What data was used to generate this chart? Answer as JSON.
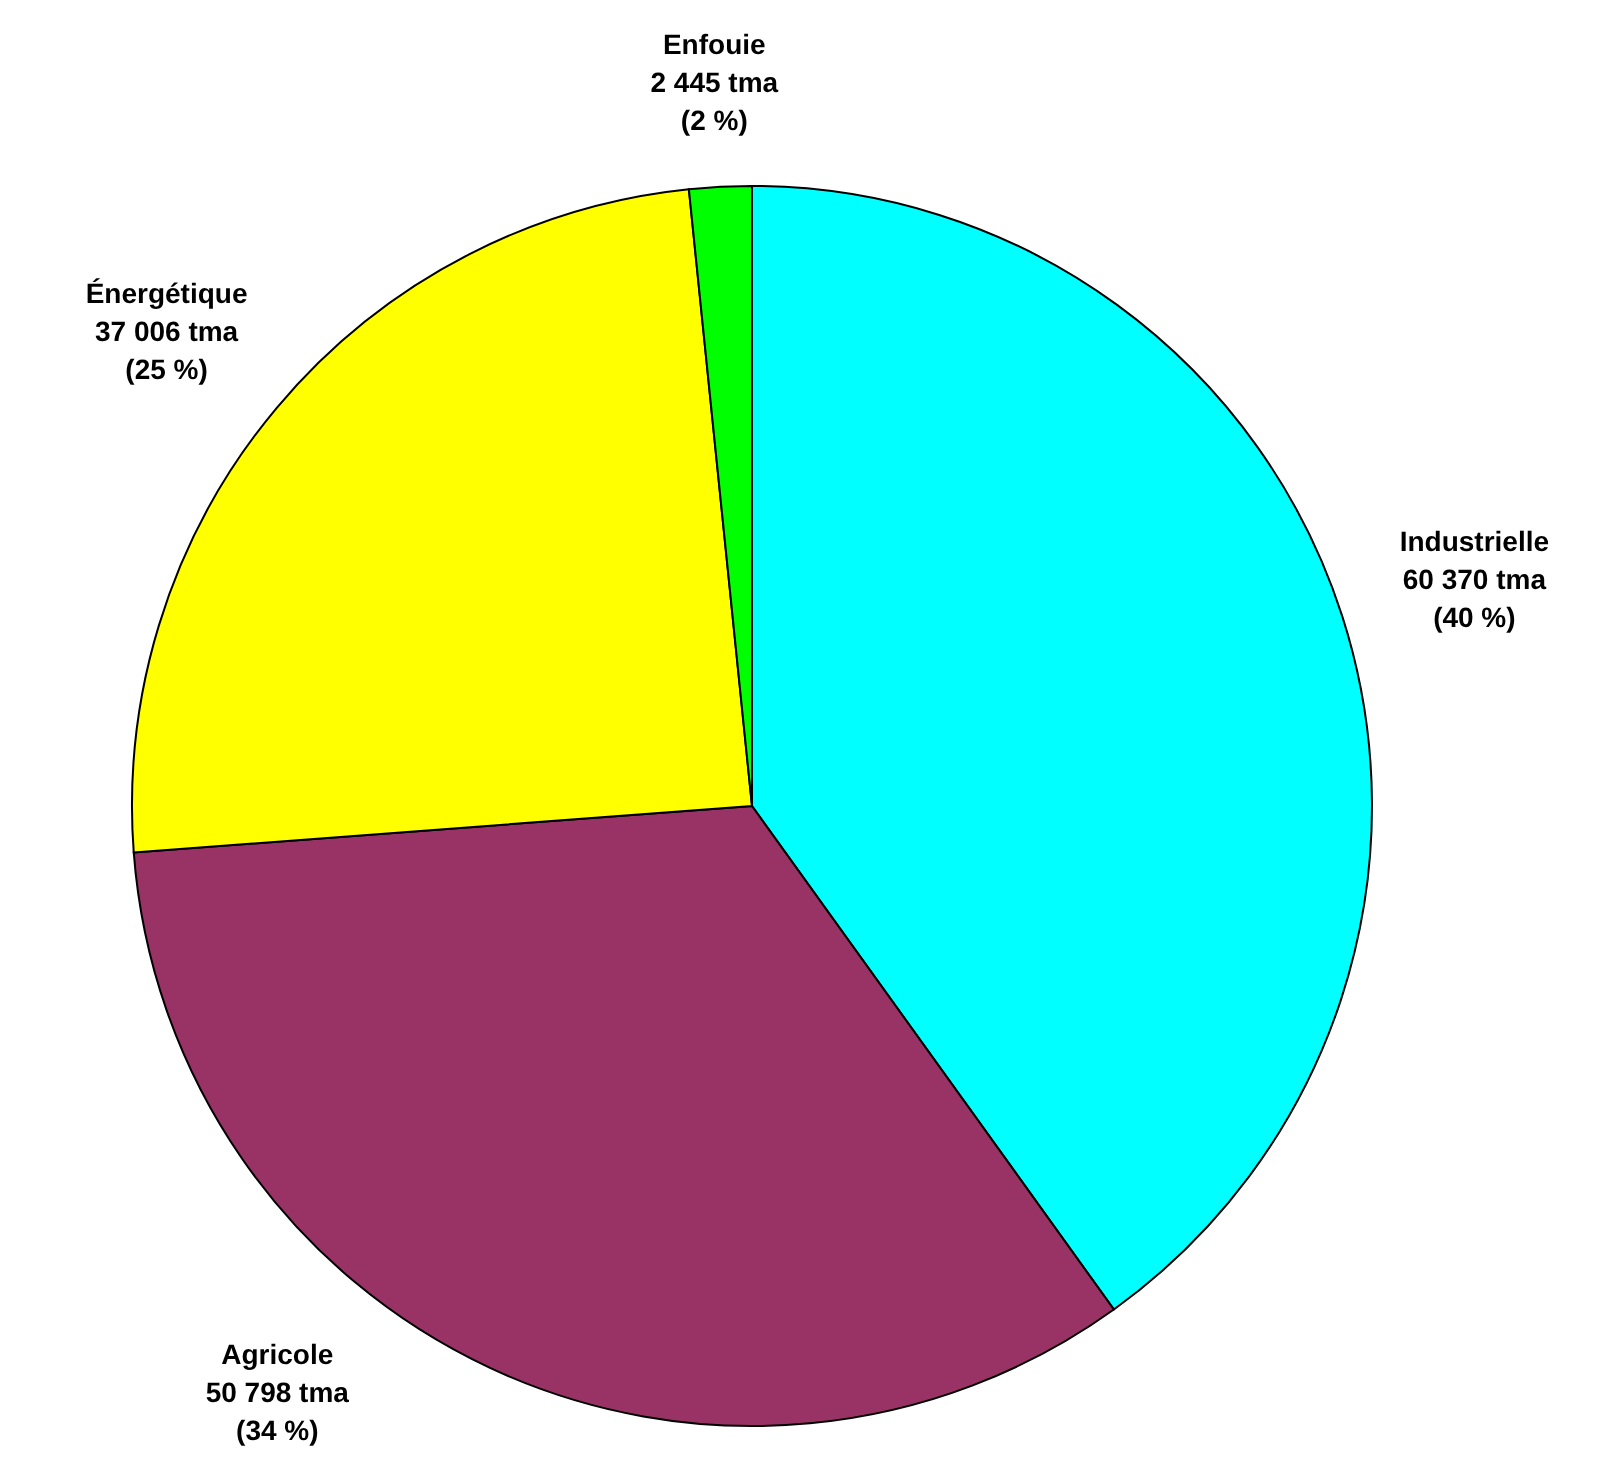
{
  "chart_data": {
    "type": "pie",
    "categories": [
      "Industrielle",
      "Agricole",
      "Énergétique",
      "Enfouie"
    ],
    "values": [
      60370,
      50798,
      37006,
      2445
    ],
    "colors": [
      "#00ffff",
      "#993366",
      "#ffff00",
      "#00ff00"
    ],
    "value_labels": [
      "60 370 tma\n(40 %)",
      "50 798 tma\n(34 %)",
      "37 006 tma\n(25 %)",
      "2 445 tma\n(2 %)"
    ]
  }
}
